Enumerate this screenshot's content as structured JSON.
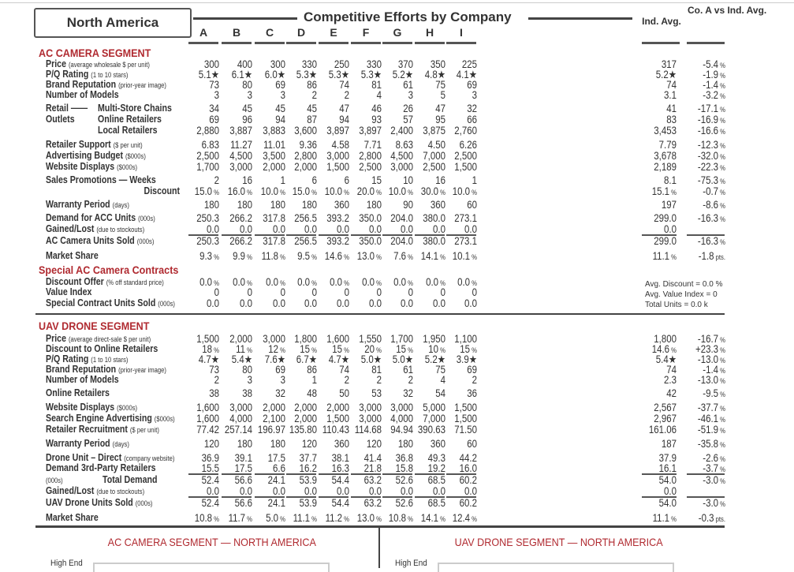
{
  "region": "North America",
  "title": "Competitive Efforts by Company",
  "companies": [
    "A",
    "B",
    "C",
    "D",
    "E",
    "F",
    "G",
    "H",
    "I"
  ],
  "summary_headers": {
    "ind_avg": "Ind. Avg.",
    "vs_avg": "Co. A vs Ind. Avg."
  },
  "ac": {
    "segment_title": "AC CAMERA SEGMENT",
    "rows": [
      {
        "label": "Price",
        "note": "(average wholesale $ per unit)",
        "values": [
          "300",
          "400",
          "300",
          "330",
          "250",
          "330",
          "370",
          "350",
          "225"
        ],
        "ind": "317",
        "vs": "-5.4 %"
      },
      {
        "label": "P/Q Rating",
        "note": "(1 to 10 stars)",
        "values": [
          "5.1★",
          "6.1★",
          "6.0★",
          "5.3★",
          "5.3★",
          "5.3★",
          "5.2★",
          "4.8★",
          "4.1★"
        ],
        "ind": "5.2★",
        "vs": "-1.9 %"
      },
      {
        "label": "Brand Reputation",
        "note": "(prior-year image)",
        "values": [
          "73",
          "80",
          "69",
          "86",
          "74",
          "81",
          "61",
          "75",
          "69"
        ],
        "ind": "74",
        "vs": "-1.4 %"
      },
      {
        "label": "Number of Models",
        "note": "",
        "values": [
          "3",
          "3",
          "3",
          "2",
          "2",
          "4",
          "3",
          "5",
          "3"
        ],
        "ind": "3.1",
        "vs": "-3.2 %"
      },
      {
        "label": "Retail ——",
        "sub": "Multi-Store Chains",
        "values": [
          "34",
          "45",
          "45",
          "45",
          "47",
          "46",
          "26",
          "47",
          "32"
        ],
        "ind": "41",
        "vs": "-17.1 %"
      },
      {
        "label": "Outlets",
        "sub": "Online Retailers",
        "values": [
          "69",
          "96",
          "94",
          "87",
          "94",
          "93",
          "57",
          "95",
          "66"
        ],
        "ind": "83",
        "vs": "-16.9 %"
      },
      {
        "label": "",
        "sub": "Local Retailers",
        "values": [
          "2,880",
          "3,887",
          "3,883",
          "3,600",
          "3,897",
          "3,897",
          "2,400",
          "3,875",
          "2,760"
        ],
        "ind": "3,453",
        "vs": "-16.6 %"
      },
      {
        "label": "Retailer Support",
        "note": "($ per unit)",
        "values": [
          "6.83",
          "11.27",
          "11.01",
          "9.36",
          "4.58",
          "7.71",
          "8.63",
          "4.50",
          "6.26"
        ],
        "ind": "7.79",
        "vs": "-12.3 %"
      },
      {
        "label": "Advertising Budget",
        "note": "($000s)",
        "values": [
          "2,500",
          "4,500",
          "3,500",
          "2,800",
          "3,000",
          "2,800",
          "4,500",
          "7,000",
          "2,500"
        ],
        "ind": "3,678",
        "vs": "-32.0 %"
      },
      {
        "label": "Website Displays",
        "note": "($000s)",
        "values": [
          "1,700",
          "3,000",
          "2,000",
          "2,000",
          "1,500",
          "2,500",
          "3,000",
          "2,500",
          "1,500"
        ],
        "ind": "2,189",
        "vs": "-22.3 %"
      },
      {
        "label": "Sales Promotions — Weeks",
        "note": "",
        "values": [
          "2",
          "16",
          "1",
          "6",
          "6",
          "15",
          "10",
          "16",
          "1"
        ],
        "ind": "8.1",
        "vs": "-75.3 %"
      },
      {
        "label": "",
        "subr": "Discount",
        "values": [
          "15.0 %",
          "16.0 %",
          "10.0 %",
          "15.0 %",
          "10.0 %",
          "20.0 %",
          "10.0 %",
          "30.0 %",
          "10.0 %"
        ],
        "ind": "15.1 %",
        "vs": "-0.7 %"
      },
      {
        "label": "Warranty Period",
        "note": "(days)",
        "values": [
          "180",
          "180",
          "180",
          "180",
          "360",
          "180",
          "90",
          "360",
          "60"
        ],
        "ind": "197",
        "vs": "-8.6 %"
      },
      {
        "label": "Demand for ACC Units",
        "note": "(000s)",
        "values": [
          "250.3",
          "266.2",
          "317.8",
          "256.5",
          "393.2",
          "350.0",
          "204.0",
          "380.0",
          "273.1"
        ],
        "ind": "299.0",
        "vs": "-16.3 %"
      },
      {
        "label": "Gained/Lost",
        "note": "(due to stockouts)",
        "values": [
          "0.0",
          "0.0",
          "0.0",
          "0.0",
          "0.0",
          "0.0",
          "0.0",
          "0.0",
          "0.0"
        ],
        "ind": "0.0",
        "vs": ""
      },
      {
        "label": "AC Camera Units Sold",
        "note": "(000s)",
        "values": [
          "250.3",
          "266.2",
          "317.8",
          "256.5",
          "393.2",
          "350.0",
          "204.0",
          "380.0",
          "273.1"
        ],
        "ind": "299.0",
        "vs": "-16.3 %"
      },
      {
        "label": "Market Share",
        "note": "",
        "values": [
          "9.3 %",
          "9.9 %",
          "11.8 %",
          "9.5 %",
          "14.6 %",
          "13.0 %",
          "7.6 %",
          "14.1 %",
          "10.1 %"
        ],
        "ind": "11.1 %",
        "vs": "-1.8 pts."
      }
    ],
    "special_title": "Special AC Camera Contracts",
    "special_rows": [
      {
        "label": "Discount Offer",
        "note": "(% off standard price)",
        "values": [
          "0.0 %",
          "0.0 %",
          "0.0 %",
          "0.0 %",
          "0.0 %",
          "0.0 %",
          "0.0 %",
          "0.0 %",
          "0.0 %"
        ]
      },
      {
        "label": "Value Index",
        "note": "",
        "values": [
          "0",
          "0",
          "0",
          "0",
          "0",
          "0",
          "0",
          "0",
          "0"
        ]
      },
      {
        "label": "Special Contract Units Sold",
        "note": "(000s)",
        "values": [
          "0.0",
          "0.0",
          "0.0",
          "0.0",
          "0.0",
          "0.0",
          "0.0",
          "0.0",
          "0.0"
        ]
      }
    ],
    "special_summary": [
      "Avg. Discount = 0.0 %",
      "Avg. Value Index = 0",
      "Total Units = 0.0 k"
    ]
  },
  "uav": {
    "segment_title": "UAV DRONE SEGMENT",
    "rows": [
      {
        "label": "Price",
        "note": "(average direct-sale $ per unit)",
        "values": [
          "1,500",
          "2,000",
          "3,000",
          "1,800",
          "1,600",
          "1,550",
          "1,700",
          "1,950",
          "1,100"
        ],
        "ind": "1,800",
        "vs": "-16.7 %"
      },
      {
        "label": "Discount to Online Retailers",
        "note": "",
        "values": [
          "18 %",
          "11 %",
          "12 %",
          "15 %",
          "15 %",
          "20 %",
          "15 %",
          "10 %",
          "15 %"
        ],
        "ind": "14.6 %",
        "vs": "+23.3 %"
      },
      {
        "label": "P/Q Rating",
        "note": "(1 to 10 stars)",
        "values": [
          "4.7★",
          "5.4★",
          "7.6★",
          "6.7★",
          "4.7★",
          "5.0★",
          "5.0★",
          "5.2★",
          "3.9★"
        ],
        "ind": "5.4★",
        "vs": "-13.0 %"
      },
      {
        "label": "Brand Reputation",
        "note": "(prior-year image)",
        "values": [
          "73",
          "80",
          "69",
          "86",
          "74",
          "81",
          "61",
          "75",
          "69"
        ],
        "ind": "74",
        "vs": "-1.4 %"
      },
      {
        "label": "Number of Models",
        "note": "",
        "values": [
          "2",
          "3",
          "3",
          "1",
          "2",
          "2",
          "2",
          "4",
          "2"
        ],
        "ind": "2.3",
        "vs": "-13.0 %"
      },
      {
        "label": "Online Retailers",
        "note": "",
        "values": [
          "38",
          "38",
          "32",
          "48",
          "50",
          "53",
          "32",
          "54",
          "36"
        ],
        "ind": "42",
        "vs": "-9.5 %"
      },
      {
        "label": "Website Displays",
        "note": "($000s)",
        "values": [
          "1,600",
          "3,000",
          "2,000",
          "2,000",
          "2,000",
          "3,000",
          "3,000",
          "5,000",
          "1,500"
        ],
        "ind": "2,567",
        "vs": "-37.7 %"
      },
      {
        "label": "Search Engine Advertising",
        "note": "($000s)",
        "values": [
          "1,600",
          "4,000",
          "2,100",
          "2,000",
          "1,500",
          "3,000",
          "4,000",
          "7,000",
          "1,500"
        ],
        "ind": "2,967",
        "vs": "-46.1 %"
      },
      {
        "label": "Retailer Recruitment",
        "note": "($ per unit)",
        "values": [
          "77.42",
          "257.14",
          "196.97",
          "135.80",
          "110.43",
          "114.68",
          "94.94",
          "390.63",
          "71.50"
        ],
        "ind": "161.06",
        "vs": "-51.9 %"
      },
      {
        "label": "Warranty Period",
        "note": "(days)",
        "values": [
          "120",
          "180",
          "180",
          "120",
          "360",
          "120",
          "180",
          "360",
          "60"
        ],
        "ind": "187",
        "vs": "-35.8 %"
      },
      {
        "label": "Drone Unit – Direct",
        "note": "(company website)",
        "values": [
          "36.9",
          "39.1",
          "17.5",
          "37.7",
          "38.1",
          "41.4",
          "36.8",
          "49.3",
          "44.2"
        ],
        "ind": "37.9",
        "vs": "-2.6 %"
      },
      {
        "label": "Demand",
        "sub2": "3rd-Party Retailers",
        "values": [
          "15.5",
          "17.5",
          "6.6",
          "16.2",
          "16.3",
          "21.8",
          "15.8",
          "19.2",
          "16.0"
        ],
        "ind": "16.1",
        "vs": "-3.7 %"
      },
      {
        "label": "",
        "note": "(000s)",
        "sub3": "Total Demand",
        "values": [
          "52.4",
          "56.6",
          "24.1",
          "53.9",
          "54.4",
          "63.2",
          "52.6",
          "68.5",
          "60.2"
        ],
        "ind": "54.0",
        "vs": "-3.0 %"
      },
      {
        "label": "Gained/Lost",
        "note": "(due to stockouts)",
        "values": [
          "0.0",
          "0.0",
          "0.0",
          "0.0",
          "0.0",
          "0.0",
          "0.0",
          "0.0",
          "0.0"
        ],
        "ind": "0.0",
        "vs": ""
      },
      {
        "label": "UAV Drone Units Sold",
        "note": "(000s)",
        "values": [
          "52.4",
          "56.6",
          "24.1",
          "53.9",
          "54.4",
          "63.2",
          "52.6",
          "68.5",
          "60.2"
        ],
        "ind": "54.0",
        "vs": "-3.0 %"
      },
      {
        "label": "Market Share",
        "note": "",
        "values": [
          "10.8 %",
          "11.7 %",
          "5.0 %",
          "11.1 %",
          "11.2 %",
          "13.0 %",
          "10.8 %",
          "14.1 %",
          "12.4 %"
        ],
        "ind": "11.1 %",
        "vs": "-0.3 pts."
      }
    ]
  },
  "bottom": {
    "ac_title": "AC CAMERA SEGMENT — NORTH AMERICA",
    "uav_title": "UAV DRONE SEGMENT — NORTH AMERICA",
    "axis_label": "High End"
  }
}
